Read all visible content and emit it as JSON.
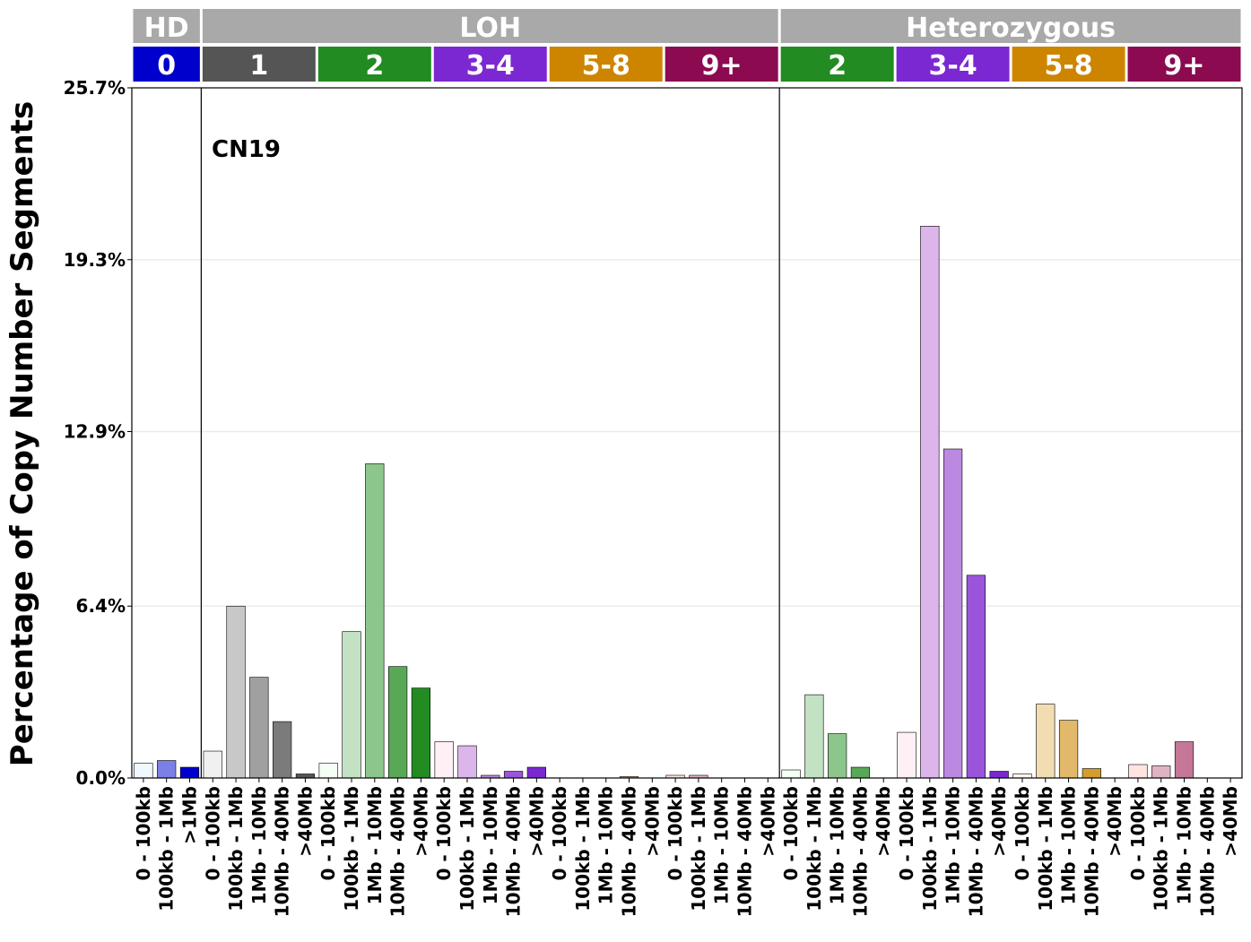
{
  "chart_data": {
    "type": "bar",
    "ylabel": "Percentage of Copy Number Segments",
    "annotation": "CN19",
    "ylim": [
      0,
      25.7
    ],
    "yticks": [
      "0.0%",
      "6.4%",
      "12.9%",
      "19.3%",
      "25.7%"
    ],
    "ytick_values": [
      0,
      6.4,
      12.9,
      19.3,
      25.7
    ],
    "grid": "horizontal",
    "top_groups": [
      {
        "label": "HD",
        "span": 3,
        "color": "#a9a9a9"
      },
      {
        "label": "LOH",
        "span": 25,
        "color": "#a9a9a9"
      },
      {
        "label": "Heterozygous",
        "span": 20,
        "color": "#a9a9a9"
      }
    ],
    "cn_groups": [
      {
        "label": "0",
        "span": 3,
        "color": "#0000cc"
      },
      {
        "label": "1",
        "span": 5,
        "color": "#555555"
      },
      {
        "label": "2",
        "span": 5,
        "color": "#228b22"
      },
      {
        "label": "3-4",
        "span": 5,
        "color": "#7b28d2"
      },
      {
        "label": "5-8",
        "span": 5,
        "color": "#cd8500"
      },
      {
        "label": "9+",
        "span": 5,
        "color": "#8b0a50"
      },
      {
        "label": "2",
        "span": 5,
        "color": "#228b22"
      },
      {
        "label": "3-4",
        "span": 5,
        "color": "#7b28d2"
      },
      {
        "label": "5-8",
        "span": 5,
        "color": "#cd8500"
      },
      {
        "label": "9+",
        "span": 5,
        "color": "#8b0a50"
      }
    ],
    "categories": [
      "0 - 100kb",
      "100kb - 1Mb",
      ">1Mb",
      "0 - 100kb",
      "100kb - 1Mb",
      "1Mb - 10Mb",
      "10Mb - 40Mb",
      ">40Mb",
      "0 - 100kb",
      "100kb - 1Mb",
      "1Mb - 10Mb",
      "10Mb - 40Mb",
      ">40Mb",
      "0 - 100kb",
      "100kb - 1Mb",
      "1Mb - 10Mb",
      "10Mb - 40Mb",
      ">40Mb",
      "0 - 100kb",
      "100kb - 1Mb",
      "1Mb - 10Mb",
      "10Mb - 40Mb",
      ">40Mb",
      "0 - 100kb",
      "100kb - 1Mb",
      "1Mb - 10Mb",
      "10Mb - 40Mb",
      ">40Mb",
      "0 - 100kb",
      "100kb - 1Mb",
      "1Mb - 10Mb",
      "10Mb - 40Mb",
      ">40Mb",
      "0 - 100kb",
      "100kb - 1Mb",
      "1Mb - 10Mb",
      "10Mb - 40Mb",
      ">40Mb",
      "0 - 100kb",
      "100kb - 1Mb",
      "1Mb - 10Mb",
      "10Mb - 40Mb",
      ">40Mb",
      "0 - 100kb",
      "100kb - 1Mb",
      "1Mb - 10Mb",
      "10Mb - 40Mb",
      ">40Mb"
    ],
    "values": [
      0.55,
      0.65,
      0.4,
      1.0,
      6.4,
      3.75,
      2.1,
      0.15,
      0.55,
      5.45,
      11.7,
      4.15,
      3.35,
      1.35,
      1.2,
      0.1,
      0.25,
      0.4,
      0.0,
      0.0,
      0.0,
      0.05,
      0.0,
      0.1,
      0.1,
      0.0,
      0.0,
      0.0,
      0.3,
      3.1,
      1.65,
      0.4,
      0.0,
      1.7,
      20.55,
      12.25,
      7.55,
      0.25,
      0.15,
      2.75,
      2.15,
      0.35,
      0.0,
      0.5,
      0.45,
      1.35,
      0.0,
      0.0
    ],
    "bar_colors": [
      "#f0f8ff",
      "#7b80e6",
      "#0000cc",
      "#f0f0f0",
      "#c8c8c8",
      "#a0a0a0",
      "#7b7b7b",
      "#555555",
      "#f5fff5",
      "#c3e2c3",
      "#8cc68c",
      "#58a858",
      "#228b22",
      "#fff0f5",
      "#dcb6ea",
      "#bb8ae0",
      "#9b55db",
      "#7b28d2",
      "#fff8f0",
      "#f2ddb3",
      "#e2b86a",
      "#d59c2e",
      "#cd8500",
      "#ffe4e1",
      "#e0b3c3",
      "#c57798",
      "#a8427a",
      "#8b0a50",
      "#f5fff5",
      "#c3e2c3",
      "#8cc68c",
      "#58a858",
      "#228b22",
      "#fff0f5",
      "#dcb6ea",
      "#bb8ae0",
      "#9b55db",
      "#7b28d2",
      "#fff8f0",
      "#f2ddb3",
      "#e2b86a",
      "#d59c2e",
      "#cd8500",
      "#ffe4e1",
      "#e0b3c3",
      "#c57798",
      "#a8427a",
      "#8b0a50"
    ]
  }
}
